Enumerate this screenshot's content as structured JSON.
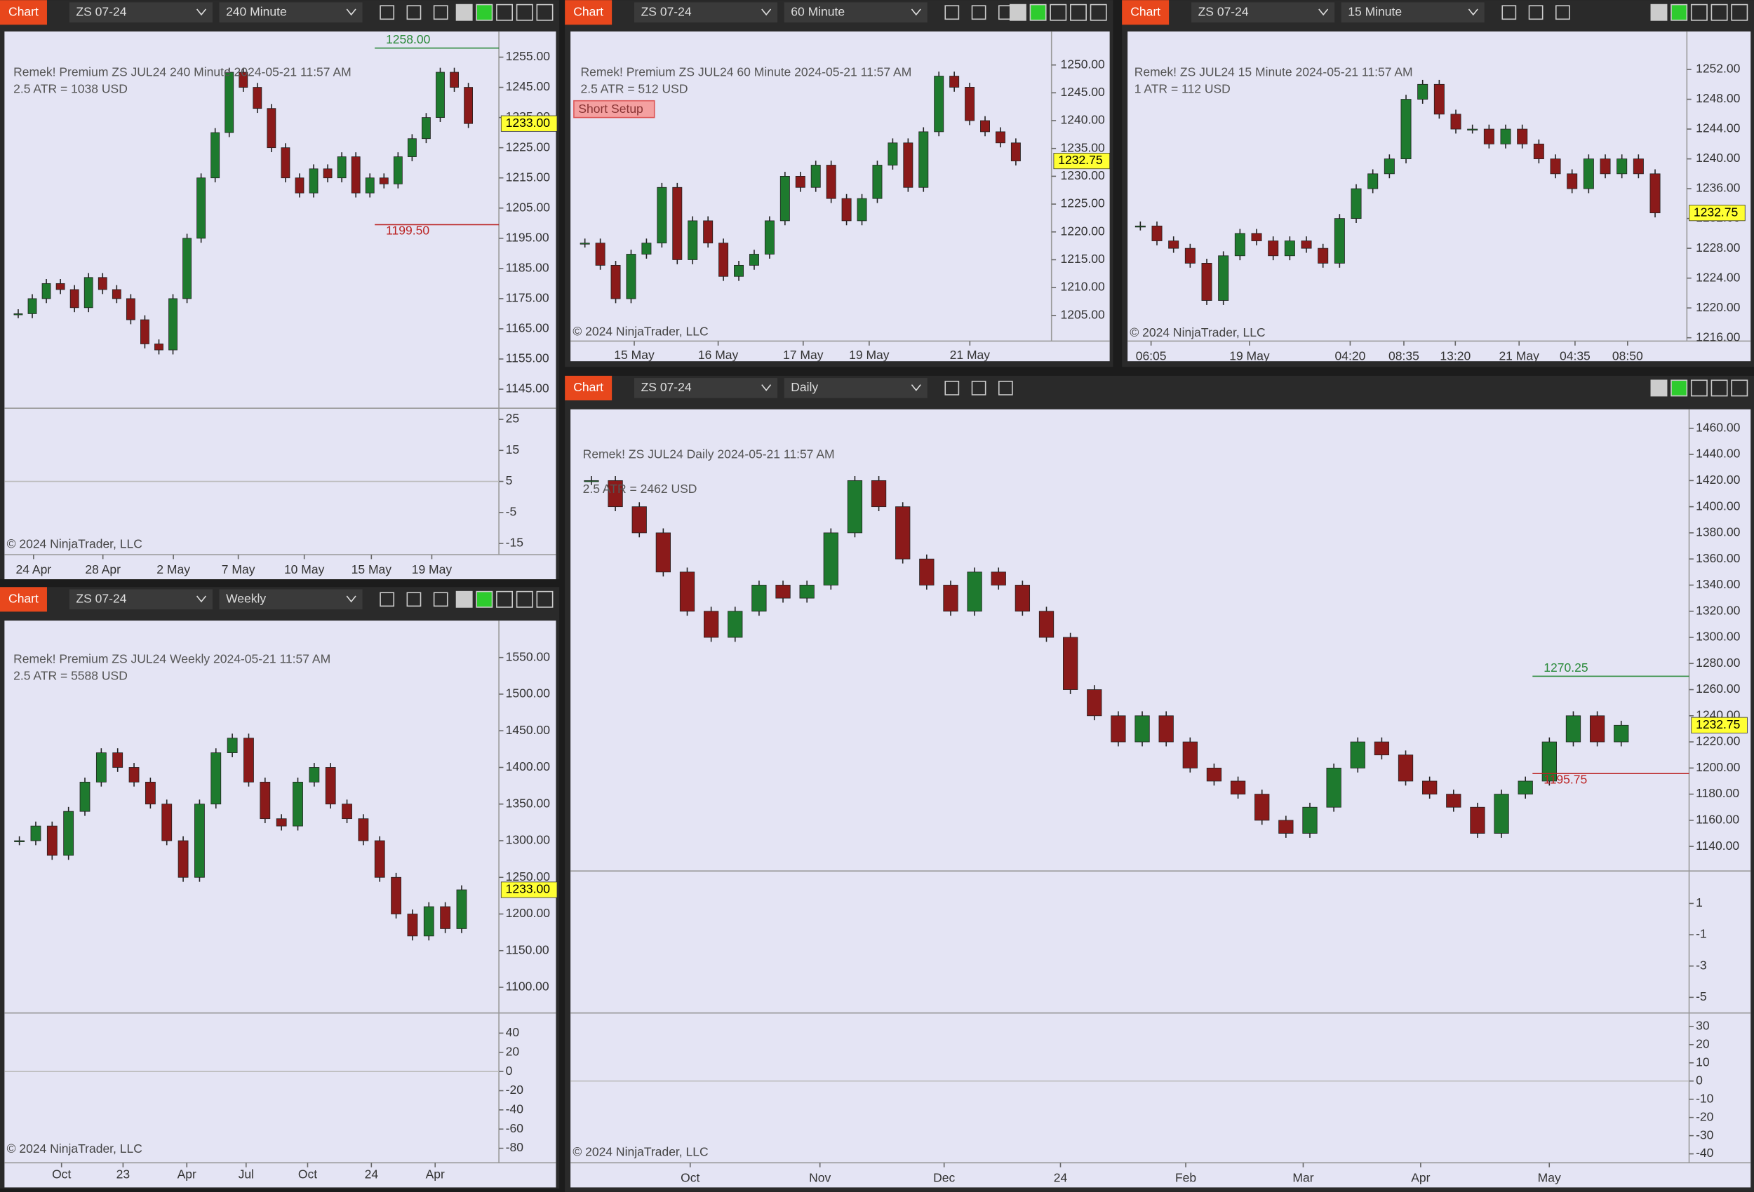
{
  "windows": [
    {
      "tab": "Chart",
      "instrument": "ZS 07-24",
      "interval": "240 Minute",
      "title": "Remek!  Premium  ZS JUL24  240 Minute  2024-05-21 11:57 AM",
      "atr": "2.5 ATR = 1038 USD",
      "copyright": "© 2024 NinjaTrader, LLC",
      "price_ticks": [
        "1255.00",
        "1245.00",
        "1235.00",
        "1225.00",
        "1215.00",
        "1205.00",
        "1195.00",
        "1185.00",
        "1175.00",
        "1165.00",
        "1155.00",
        "1145.00"
      ],
      "last_price": "1233.00",
      "levels": [
        "1258.00",
        "1199.50"
      ],
      "dates": [
        "24 Apr",
        "28 Apr",
        "2 May",
        "7 May",
        "10 May",
        "15 May",
        "19 May"
      ],
      "indicator_ticks": [
        "25",
        "15",
        "5",
        "-5",
        "-15"
      ],
      "closes": [
        1170,
        1175,
        1180,
        1178,
        1172,
        1182,
        1178,
        1175,
        1168,
        1160,
        1158,
        1175,
        1195,
        1215,
        1230,
        1250,
        1245,
        1238,
        1225,
        1215,
        1210,
        1218,
        1215,
        1222,
        1210,
        1215,
        1213,
        1222,
        1228,
        1235,
        1250,
        1245,
        1233
      ]
    },
    {
      "tab": "Chart",
      "instrument": "ZS 07-24",
      "interval": "60 Minute",
      "title": "Remek!  Premium  ZS JUL24  60 Minute  2024-05-21 11:57 AM",
      "atr": "2.5 ATR = 512 USD",
      "setup": "Short Setup",
      "copyright": "© 2024 NinjaTrader, LLC",
      "price_ticks": [
        "1250.00",
        "1245.00",
        "1240.00",
        "1235.00",
        "1230.00",
        "1225.00",
        "1220.00",
        "1215.00",
        "1210.00",
        "1205.00"
      ],
      "last_price": "1232.75",
      "dates": [
        "15 May",
        "16 May",
        "17 May",
        "19 May",
        "21 May"
      ],
      "closes": [
        1218,
        1214,
        1208,
        1216,
        1218,
        1228,
        1215,
        1222,
        1218,
        1212,
        1214,
        1216,
        1222,
        1230,
        1228,
        1232,
        1226,
        1222,
        1226,
        1232,
        1236,
        1228,
        1238,
        1248,
        1246,
        1240,
        1238,
        1236,
        1232.75
      ]
    },
    {
      "tab": "Chart",
      "instrument": "ZS 07-24",
      "interval": "15 Minute",
      "title": "Remek!  ZS JUL24  15 Minute  2024-05-21 11:57 AM",
      "atr": "1 ATR = 112 USD",
      "copyright": "© 2024 NinjaTrader, LLC",
      "price_ticks": [
        "1252.00",
        "1248.00",
        "1244.00",
        "1240.00",
        "1236.00",
        "1232.00",
        "1228.00",
        "1224.00",
        "1220.00",
        "1216.00"
      ],
      "last_price": "1232.75",
      "dates": [
        "06:05",
        "19 May",
        "04:20",
        "08:35",
        "13:20",
        "21 May",
        "04:35",
        "08:50"
      ],
      "closes": [
        1231,
        1229,
        1228,
        1226,
        1221,
        1227,
        1230,
        1229,
        1227,
        1229,
        1228,
        1226,
        1232,
        1236,
        1238,
        1240,
        1248,
        1250,
        1246,
        1244,
        1244,
        1242,
        1244,
        1242,
        1240,
        1238,
        1236,
        1240,
        1238,
        1240,
        1238,
        1232.75
      ]
    },
    {
      "tab": "Chart",
      "instrument": "ZS 07-24",
      "interval": "Weekly",
      "title": "Remek!  Premium  ZS JUL24  Weekly  2024-05-21 11:57 AM",
      "atr": "2.5 ATR = 5588 USD",
      "copyright": "© 2024 NinjaTrader, LLC",
      "price_ticks": [
        "1550.00",
        "1500.00",
        "1450.00",
        "1400.00",
        "1350.00",
        "1300.00",
        "1250.00",
        "1200.00",
        "1150.00",
        "1100.00"
      ],
      "last_price": "1233.00",
      "dates": [
        "Oct",
        "23",
        "Apr",
        "Jul",
        "Oct",
        "24",
        "Apr"
      ],
      "indicator_ticks": [
        "40",
        "20",
        "0",
        "-20",
        "-40",
        "-60",
        "-80"
      ],
      "closes": [
        1300,
        1320,
        1280,
        1340,
        1380,
        1420,
        1400,
        1380,
        1350,
        1300,
        1250,
        1350,
        1420,
        1440,
        1380,
        1330,
        1320,
        1380,
        1400,
        1350,
        1330,
        1300,
        1250,
        1200,
        1170,
        1210,
        1180,
        1233
      ]
    },
    {
      "tab": "Chart",
      "instrument": "ZS 07-24",
      "interval": "Daily",
      "title": "Remek!  ZS JUL24  Daily  2024-05-21 11:57 AM",
      "atr": "2.5 ATR = 2462 USD",
      "copyright": "© 2024 NinjaTrader, LLC",
      "price_ticks": [
        "1460.00",
        "1440.00",
        "1420.00",
        "1400.00",
        "1380.00",
        "1360.00",
        "1340.00",
        "1320.00",
        "1300.00",
        "1280.00",
        "1260.00",
        "1240.00",
        "1220.00",
        "1200.00",
        "1180.00",
        "1160.00",
        "1140.00"
      ],
      "last_price": "1232.75",
      "levels": [
        "1270.25",
        "1195.75"
      ],
      "dates": [
        "Oct",
        "Nov",
        "Dec",
        "24",
        "Feb",
        "Mar",
        "Apr",
        "May"
      ],
      "indicator_ticks": [
        "1",
        "-1",
        "-3",
        "-5"
      ],
      "indicator2_ticks": [
        "30",
        "20",
        "10",
        "0",
        "-10",
        "-20",
        "-30",
        "-40"
      ],
      "closes": [
        1420,
        1400,
        1380,
        1350,
        1320,
        1300,
        1320,
        1340,
        1330,
        1340,
        1380,
        1420,
        1400,
        1360,
        1340,
        1320,
        1350,
        1340,
        1320,
        1300,
        1260,
        1240,
        1220,
        1240,
        1220,
        1200,
        1190,
        1180,
        1160,
        1150,
        1170,
        1200,
        1220,
        1210,
        1190,
        1180,
        1170,
        1150,
        1180,
        1190,
        1220,
        1240,
        1220,
        1232.75
      ]
    }
  ]
}
